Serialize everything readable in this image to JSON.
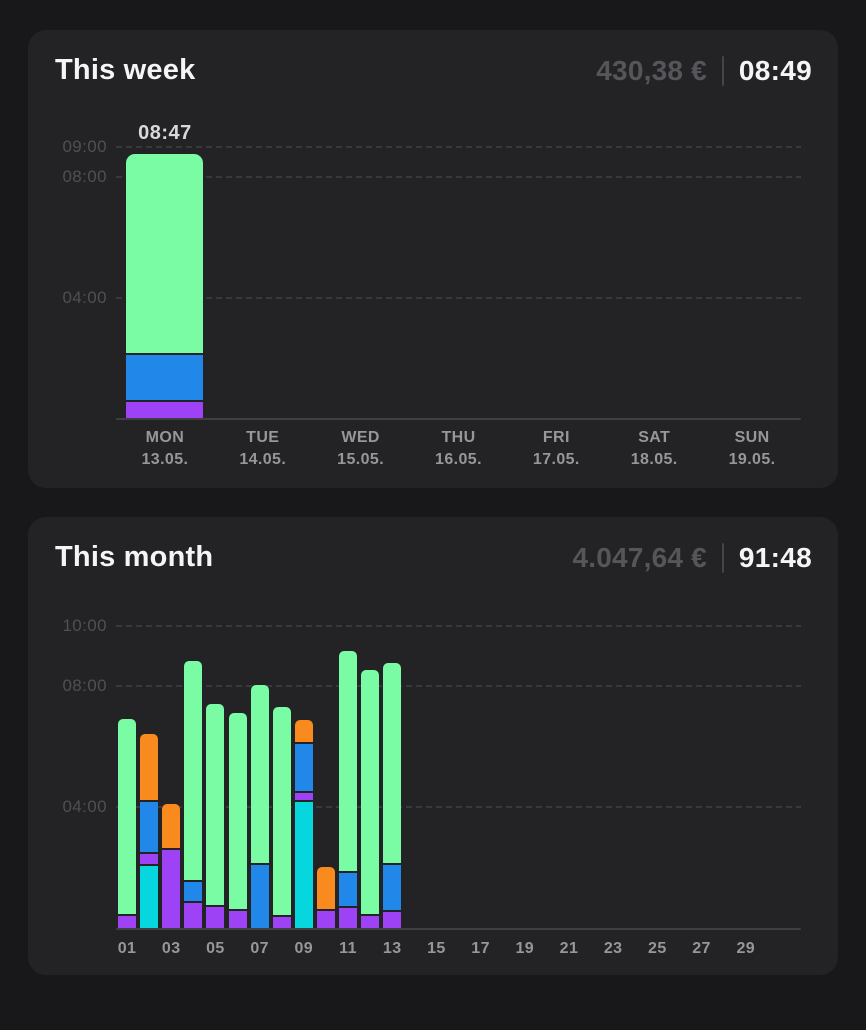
{
  "colors": {
    "green": "#79fca4",
    "blue": "#2187e9",
    "purple": "#9d43f5",
    "orange": "#f98a1d",
    "cyan": "#06d6de",
    "grid": "#39393d",
    "axis": "#3f3f43",
    "y_label": "#4f4f54",
    "x_label": "#96969b",
    "title": "#f5f5f7",
    "money": "#55555a",
    "time": "#f5f5f7",
    "divider": "#454549",
    "bar_label": "#d9d9dd",
    "page_bg": "#18181a",
    "card_bg": "#232326"
  },
  "chart_data": [
    {
      "type": "bar",
      "stacked": true,
      "title": "This week",
      "total_money": "430,38 €",
      "total_time": "08:49",
      "unit": "hours",
      "ylim": [
        0,
        9.6
      ],
      "grid": "dashed-horizontal",
      "legend": "none",
      "yticks": [
        {
          "value": 9,
          "label": "09:00"
        },
        {
          "value": 8,
          "label": "08:00"
        },
        {
          "value": 4,
          "label": "04:00"
        }
      ],
      "categories": [
        {
          "weekday": "MON",
          "date": "13.05."
        },
        {
          "weekday": "TUE",
          "date": "14.05."
        },
        {
          "weekday": "WED",
          "date": "15.05."
        },
        {
          "weekday": "THU",
          "date": "16.05."
        },
        {
          "weekday": "FRI",
          "date": "17.05."
        },
        {
          "weekday": "SAT",
          "date": "18.05."
        },
        {
          "weekday": "SUN",
          "date": "19.05."
        }
      ],
      "bars": [
        {
          "slot": 0,
          "label": "08:47",
          "total_hours": 8.78,
          "segments": [
            {
              "color": "purple",
              "hours": 0.52
            },
            {
              "color": "blue",
              "hours": 1.59
            },
            {
              "color": "green",
              "hours": 6.67
            }
          ]
        }
      ]
    },
    {
      "type": "bar",
      "stacked": true,
      "title": "This month",
      "total_money": "4.047,64 €",
      "total_time": "91:48",
      "unit": "hours",
      "days": 31,
      "ylim": [
        0,
        10.6
      ],
      "grid": "dashed-horizontal",
      "legend": "none",
      "yticks": [
        {
          "value": 10,
          "label": "10:00"
        },
        {
          "value": 8,
          "label": "08:00"
        },
        {
          "value": 4,
          "label": "04:00"
        }
      ],
      "xticks": [
        {
          "day": 1,
          "label": "01"
        },
        {
          "day": 3,
          "label": "03"
        },
        {
          "day": 5,
          "label": "05"
        },
        {
          "day": 7,
          "label": "07"
        },
        {
          "day": 9,
          "label": "09"
        },
        {
          "day": 11,
          "label": "11"
        },
        {
          "day": 13,
          "label": "13"
        },
        {
          "day": 15,
          "label": "15"
        },
        {
          "day": 17,
          "label": "17"
        },
        {
          "day": 19,
          "label": "19"
        },
        {
          "day": 21,
          "label": "21"
        },
        {
          "day": 23,
          "label": "23"
        },
        {
          "day": 25,
          "label": "25"
        },
        {
          "day": 27,
          "label": "27"
        },
        {
          "day": 29,
          "label": "29"
        }
      ],
      "bars": [
        {
          "day": 1,
          "total_hours": 6.92,
          "segments": [
            {
              "color": "purple",
              "hours": 0.4
            },
            {
              "color": "green",
              "hours": 6.52
            }
          ]
        },
        {
          "day": 2,
          "total_hours": 6.44,
          "segments": [
            {
              "color": "cyan",
              "hours": 2.06
            },
            {
              "color": "purple",
              "hours": 0.39
            },
            {
              "color": "blue",
              "hours": 1.73
            },
            {
              "color": "orange",
              "hours": 2.26
            }
          ]
        },
        {
          "day": 3,
          "total_hours": 4.1,
          "segments": [
            {
              "color": "purple",
              "hours": 2.58
            },
            {
              "color": "orange",
              "hours": 1.52
            }
          ]
        },
        {
          "day": 4,
          "total_hours": 8.84,
          "segments": [
            {
              "color": "purple",
              "hours": 0.82
            },
            {
              "color": "blue",
              "hours": 0.72
            },
            {
              "color": "green",
              "hours": 7.3
            }
          ]
        },
        {
          "day": 5,
          "total_hours": 7.42,
          "segments": [
            {
              "color": "purple",
              "hours": 0.7
            },
            {
              "color": "green",
              "hours": 6.72
            }
          ]
        },
        {
          "day": 6,
          "total_hours": 7.12,
          "segments": [
            {
              "color": "purple",
              "hours": 0.55
            },
            {
              "color": "green",
              "hours": 6.57
            }
          ]
        },
        {
          "day": 7,
          "total_hours": 8.05,
          "segments": [
            {
              "color": "blue",
              "hours": 2.1
            },
            {
              "color": "green",
              "hours": 5.95
            }
          ]
        },
        {
          "day": 8,
          "total_hours": 7.32,
          "segments": [
            {
              "color": "purple",
              "hours": 0.35
            },
            {
              "color": "green",
              "hours": 6.97
            }
          ]
        },
        {
          "day": 9,
          "total_hours": 6.89,
          "segments": [
            {
              "color": "cyan",
              "hours": 4.17
            },
            {
              "color": "purple",
              "hours": 0.3
            },
            {
              "color": "blue",
              "hours": 1.62
            },
            {
              "color": "orange",
              "hours": 0.8
            }
          ]
        },
        {
          "day": 10,
          "total_hours": 2.02,
          "segments": [
            {
              "color": "purple",
              "hours": 0.55
            },
            {
              "color": "orange",
              "hours": 1.47
            }
          ]
        },
        {
          "day": 11,
          "total_hours": 9.18,
          "segments": [
            {
              "color": "purple",
              "hours": 0.66
            },
            {
              "color": "blue",
              "hours": 1.16
            },
            {
              "color": "green",
              "hours": 7.36
            }
          ]
        },
        {
          "day": 12,
          "total_hours": 8.54,
          "segments": [
            {
              "color": "purple",
              "hours": 0.41
            },
            {
              "color": "green",
              "hours": 8.13
            }
          ]
        },
        {
          "day": 13,
          "total_hours": 8.78,
          "segments": [
            {
              "color": "purple",
              "hours": 0.52
            },
            {
              "color": "blue",
              "hours": 1.58
            },
            {
              "color": "green",
              "hours": 6.68
            }
          ]
        }
      ]
    }
  ]
}
